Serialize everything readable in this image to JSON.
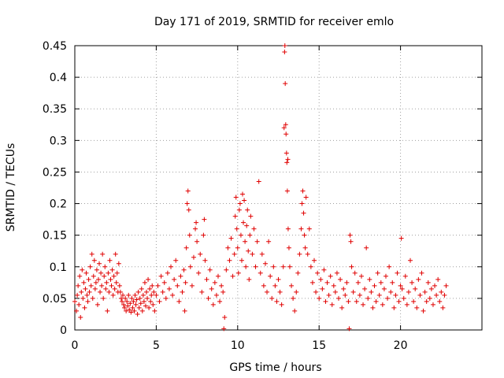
{
  "chart_data": {
    "type": "scatter",
    "title": "Day 171 of 2019, SRMTID for receiver emlo",
    "xlabel": "GPS time / hours",
    "ylabel": "SRMTID / TECUs",
    "xlim": [
      0,
      25
    ],
    "ylim": [
      0,
      0.45
    ],
    "xticks": [
      0,
      5,
      10,
      15,
      20
    ],
    "yticks": [
      0,
      0.05,
      0.1,
      0.15,
      0.2,
      0.25,
      0.3,
      0.35,
      0.4,
      0.45
    ],
    "xtick_labels": [
      "0",
      "5",
      "10",
      "15",
      "20"
    ],
    "ytick_labels": [
      "0",
      "0.05",
      "0.1",
      "0.15",
      "0.2",
      "0.25",
      "0.3",
      "0.35",
      "0.4",
      "0.45"
    ],
    "grid": true,
    "marker": "+",
    "color": "#e00000",
    "series": [
      {
        "name": "SRMTID",
        "points": [
          [
            0.0,
            0.045
          ],
          [
            0.1,
            0.03
          ],
          [
            0.15,
            0.055
          ],
          [
            0.2,
            0.07
          ],
          [
            0.25,
            0.04
          ],
          [
            0.3,
            0.085
          ],
          [
            0.35,
            0.02
          ],
          [
            0.4,
            0.06
          ],
          [
            0.45,
            0.095
          ],
          [
            0.5,
            0.05
          ],
          [
            0.55,
            0.075
          ],
          [
            0.6,
            0.035
          ],
          [
            0.65,
            0.065
          ],
          [
            0.7,
            0.09
          ],
          [
            0.75,
            0.055
          ],
          [
            0.8,
            0.045
          ],
          [
            0.85,
            0.08
          ],
          [
            0.9,
            0.06
          ],
          [
            0.95,
            0.1
          ],
          [
            1.0,
            0.07
          ],
          [
            1.05,
            0.12
          ],
          [
            1.1,
            0.05
          ],
          [
            1.15,
            0.085
          ],
          [
            1.2,
            0.11
          ],
          [
            1.25,
            0.065
          ],
          [
            1.3,
            0.075
          ],
          [
            1.35,
            0.095
          ],
          [
            1.4,
            0.04
          ],
          [
            1.45,
            0.08
          ],
          [
            1.5,
            0.105
          ],
          [
            1.55,
            0.06
          ],
          [
            1.6,
            0.09
          ],
          [
            1.65,
            0.07
          ],
          [
            1.7,
            0.12
          ],
          [
            1.75,
            0.05
          ],
          [
            1.8,
            0.085
          ],
          [
            1.85,
            0.1
          ],
          [
            1.9,
            0.065
          ],
          [
            1.95,
            0.075
          ],
          [
            2.0,
            0.03
          ],
          [
            2.05,
            0.09
          ],
          [
            2.1,
            0.06
          ],
          [
            2.15,
            0.11
          ],
          [
            2.2,
            0.08
          ],
          [
            2.25,
            0.07
          ],
          [
            2.3,
            0.095
          ],
          [
            2.35,
            0.055
          ],
          [
            2.4,
            0.085
          ],
          [
            2.45,
            0.065
          ],
          [
            2.5,
            0.12
          ],
          [
            2.55,
            0.075
          ],
          [
            2.6,
            0.09
          ],
          [
            2.65,
            0.06
          ],
          [
            2.7,
            0.105
          ],
          [
            2.75,
            0.07
          ],
          [
            2.8,
            0.06
          ],
          [
            2.85,
            0.05
          ],
          [
            2.9,
            0.045
          ],
          [
            2.95,
            0.055
          ],
          [
            3.0,
            0.04
          ],
          [
            3.05,
            0.035
          ],
          [
            3.1,
            0.05
          ],
          [
            3.15,
            0.03
          ],
          [
            3.2,
            0.045
          ],
          [
            3.25,
            0.038
          ],
          [
            3.3,
            0.055
          ],
          [
            3.35,
            0.032
          ],
          [
            3.4,
            0.042
          ],
          [
            3.45,
            0.028
          ],
          [
            3.5,
            0.05
          ],
          [
            3.55,
            0.035
          ],
          [
            3.6,
            0.045
          ],
          [
            3.65,
            0.03
          ],
          [
            3.7,
            0.055
          ],
          [
            3.75,
            0.04
          ],
          [
            3.8,
            0.048
          ],
          [
            3.85,
            0.025
          ],
          [
            3.9,
            0.06
          ],
          [
            3.95,
            0.035
          ],
          [
            4.0,
            0.05
          ],
          [
            4.05,
            0.042
          ],
          [
            4.1,
            0.065
          ],
          [
            4.15,
            0.03
          ],
          [
            4.2,
            0.055
          ],
          [
            4.25,
            0.045
          ],
          [
            4.3,
            0.075
          ],
          [
            4.35,
            0.038
          ],
          [
            4.4,
            0.06
          ],
          [
            4.45,
            0.05
          ],
          [
            4.5,
            0.08
          ],
          [
            4.55,
            0.035
          ],
          [
            4.6,
            0.065
          ],
          [
            4.65,
            0.045
          ],
          [
            4.7,
            0.055
          ],
          [
            4.75,
            0.07
          ],
          [
            4.8,
            0.04
          ],
          [
            4.85,
            0.06
          ],
          [
            4.9,
            0.03
          ],
          [
            5.0,
            0.055
          ],
          [
            5.1,
            0.07
          ],
          [
            5.2,
            0.045
          ],
          [
            5.3,
            0.085
          ],
          [
            5.4,
            0.06
          ],
          [
            5.5,
            0.075
          ],
          [
            5.6,
            0.05
          ],
          [
            5.7,
            0.09
          ],
          [
            5.8,
            0.065
          ],
          [
            5.9,
            0.1
          ],
          [
            6.0,
            0.055
          ],
          [
            6.1,
            0.08
          ],
          [
            6.2,
            0.11
          ],
          [
            6.3,
            0.07
          ],
          [
            6.4,
            0.045
          ],
          [
            6.5,
            0.085
          ],
          [
            6.6,
            0.06
          ],
          [
            6.7,
            0.095
          ],
          [
            6.75,
            0.03
          ],
          [
            6.8,
            0.075
          ],
          [
            6.85,
            0.13
          ],
          [
            6.9,
            0.2
          ],
          [
            6.95,
            0.22
          ],
          [
            7.0,
            0.19
          ],
          [
            7.05,
            0.15
          ],
          [
            7.1,
            0.1
          ],
          [
            7.2,
            0.07
          ],
          [
            7.3,
            0.115
          ],
          [
            7.4,
            0.16
          ],
          [
            7.45,
            0.17
          ],
          [
            7.5,
            0.14
          ],
          [
            7.6,
            0.09
          ],
          [
            7.7,
            0.12
          ],
          [
            7.8,
            0.06
          ],
          [
            7.9,
            0.15
          ],
          [
            7.95,
            0.175
          ],
          [
            8.0,
            0.11
          ],
          [
            8.1,
            0.08
          ],
          [
            8.2,
            0.05
          ],
          [
            8.3,
            0.095
          ],
          [
            8.4,
            0.065
          ],
          [
            8.5,
            0.04
          ],
          [
            8.6,
            0.075
          ],
          [
            8.7,
            0.055
          ],
          [
            8.8,
            0.085
          ],
          [
            8.9,
            0.045
          ],
          [
            9.0,
            0.07
          ],
          [
            9.1,
            0.06
          ],
          [
            9.15,
            0.002
          ],
          [
            9.2,
            0.02
          ],
          [
            9.3,
            0.095
          ],
          [
            9.4,
            0.13
          ],
          [
            9.5,
            0.11
          ],
          [
            9.6,
            0.145
          ],
          [
            9.7,
            0.085
          ],
          [
            9.8,
            0.12
          ],
          [
            9.85,
            0.18
          ],
          [
            9.9,
            0.21
          ],
          [
            9.95,
            0.16
          ],
          [
            10.0,
            0.13
          ],
          [
            10.05,
            0.09
          ],
          [
            10.1,
            0.19
          ],
          [
            10.15,
            0.2
          ],
          [
            10.2,
            0.15
          ],
          [
            10.25,
            0.11
          ],
          [
            10.3,
            0.215
          ],
          [
            10.35,
            0.17
          ],
          [
            10.4,
            0.205
          ],
          [
            10.45,
            0.14
          ],
          [
            10.5,
            0.1
          ],
          [
            10.55,
            0.165
          ],
          [
            10.6,
            0.19
          ],
          [
            10.65,
            0.125
          ],
          [
            10.7,
            0.08
          ],
          [
            10.75,
            0.15
          ],
          [
            10.8,
            0.18
          ],
          [
            10.9,
            0.12
          ],
          [
            11.0,
            0.16
          ],
          [
            11.1,
            0.1
          ],
          [
            11.2,
            0.14
          ],
          [
            11.3,
            0.235
          ],
          [
            11.4,
            0.09
          ],
          [
            11.5,
            0.12
          ],
          [
            11.6,
            0.07
          ],
          [
            11.7,
            0.105
          ],
          [
            11.8,
            0.06
          ],
          [
            11.9,
            0.14
          ],
          [
            12.0,
            0.085
          ],
          [
            12.1,
            0.05
          ],
          [
            12.2,
            0.1
          ],
          [
            12.3,
            0.07
          ],
          [
            12.4,
            0.045
          ],
          [
            12.5,
            0.08
          ],
          [
            12.6,
            0.06
          ],
          [
            12.7,
            0.04
          ],
          [
            12.8,
            0.1
          ],
          [
            12.85,
            0.32
          ],
          [
            12.88,
            0.44
          ],
          [
            12.9,
            0.45
          ],
          [
            12.92,
            0.39
          ],
          [
            12.95,
            0.325
          ],
          [
            12.97,
            0.31
          ],
          [
            13.0,
            0.28
          ],
          [
            13.02,
            0.265
          ],
          [
            13.05,
            0.22
          ],
          [
            13.08,
            0.27
          ],
          [
            13.1,
            0.16
          ],
          [
            13.15,
            0.13
          ],
          [
            13.2,
            0.1
          ],
          [
            13.3,
            0.07
          ],
          [
            13.4,
            0.05
          ],
          [
            13.5,
            0.03
          ],
          [
            13.6,
            0.06
          ],
          [
            13.7,
            0.09
          ],
          [
            13.8,
            0.12
          ],
          [
            13.9,
            0.16
          ],
          [
            13.95,
            0.2
          ],
          [
            14.0,
            0.22
          ],
          [
            14.05,
            0.185
          ],
          [
            14.1,
            0.15
          ],
          [
            14.15,
            0.13
          ],
          [
            14.2,
            0.21
          ],
          [
            14.3,
            0.12
          ],
          [
            14.4,
            0.16
          ],
          [
            14.5,
            0.1
          ],
          [
            14.6,
            0.075
          ],
          [
            14.7,
            0.11
          ],
          [
            14.8,
            0.06
          ],
          [
            14.9,
            0.09
          ],
          [
            15.0,
            0.05
          ],
          [
            15.1,
            0.08
          ],
          [
            15.2,
            0.065
          ],
          [
            15.3,
            0.095
          ],
          [
            15.4,
            0.045
          ],
          [
            15.5,
            0.075
          ],
          [
            15.6,
            0.055
          ],
          [
            15.7,
            0.085
          ],
          [
            15.8,
            0.04
          ],
          [
            15.9,
            0.07
          ],
          [
            16.0,
            0.06
          ],
          [
            16.1,
            0.09
          ],
          [
            16.2,
            0.05
          ],
          [
            16.3,
            0.08
          ],
          [
            16.4,
            0.035
          ],
          [
            16.5,
            0.065
          ],
          [
            16.6,
            0.055
          ],
          [
            16.7,
            0.075
          ],
          [
            16.8,
            0.045
          ],
          [
            16.85,
            0.002
          ],
          [
            16.9,
            0.15
          ],
          [
            16.95,
            0.14
          ],
          [
            17.0,
            0.1
          ],
          [
            17.1,
            0.06
          ],
          [
            17.2,
            0.09
          ],
          [
            17.3,
            0.045
          ],
          [
            17.4,
            0.075
          ],
          [
            17.5,
            0.055
          ],
          [
            17.6,
            0.085
          ],
          [
            17.7,
            0.04
          ],
          [
            17.8,
            0.065
          ],
          [
            17.9,
            0.13
          ],
          [
            18.0,
            0.05
          ],
          [
            18.1,
            0.08
          ],
          [
            18.2,
            0.06
          ],
          [
            18.3,
            0.035
          ],
          [
            18.4,
            0.07
          ],
          [
            18.5,
            0.045
          ],
          [
            18.6,
            0.09
          ],
          [
            18.7,
            0.055
          ],
          [
            18.8,
            0.075
          ],
          [
            18.9,
            0.04
          ],
          [
            19.0,
            0.065
          ],
          [
            19.1,
            0.085
          ],
          [
            19.2,
            0.05
          ],
          [
            19.3,
            0.1
          ],
          [
            19.4,
            0.06
          ],
          [
            19.5,
            0.075
          ],
          [
            19.6,
            0.035
          ],
          [
            19.7,
            0.055
          ],
          [
            19.8,
            0.09
          ],
          [
            19.9,
            0.045
          ],
          [
            20.0,
            0.07
          ],
          [
            20.05,
            0.145
          ],
          [
            20.1,
            0.065
          ],
          [
            20.2,
            0.05
          ],
          [
            20.3,
            0.085
          ],
          [
            20.4,
            0.04
          ],
          [
            20.5,
            0.06
          ],
          [
            20.6,
            0.11
          ],
          [
            20.7,
            0.075
          ],
          [
            20.8,
            0.045
          ],
          [
            20.9,
            0.065
          ],
          [
            21.0,
            0.035
          ],
          [
            21.1,
            0.08
          ],
          [
            21.2,
            0.055
          ],
          [
            21.3,
            0.09
          ],
          [
            21.4,
            0.03
          ],
          [
            21.5,
            0.06
          ],
          [
            21.6,
            0.045
          ],
          [
            21.7,
            0.075
          ],
          [
            21.8,
            0.05
          ],
          [
            21.9,
            0.065
          ],
          [
            22.0,
            0.04
          ],
          [
            22.1,
            0.07
          ],
          [
            22.2,
            0.055
          ],
          [
            22.3,
            0.08
          ],
          [
            22.4,
            0.045
          ],
          [
            22.5,
            0.06
          ],
          [
            22.6,
            0.035
          ],
          [
            22.7,
            0.055
          ],
          [
            22.8,
            0.07
          ]
        ]
      }
    ]
  }
}
